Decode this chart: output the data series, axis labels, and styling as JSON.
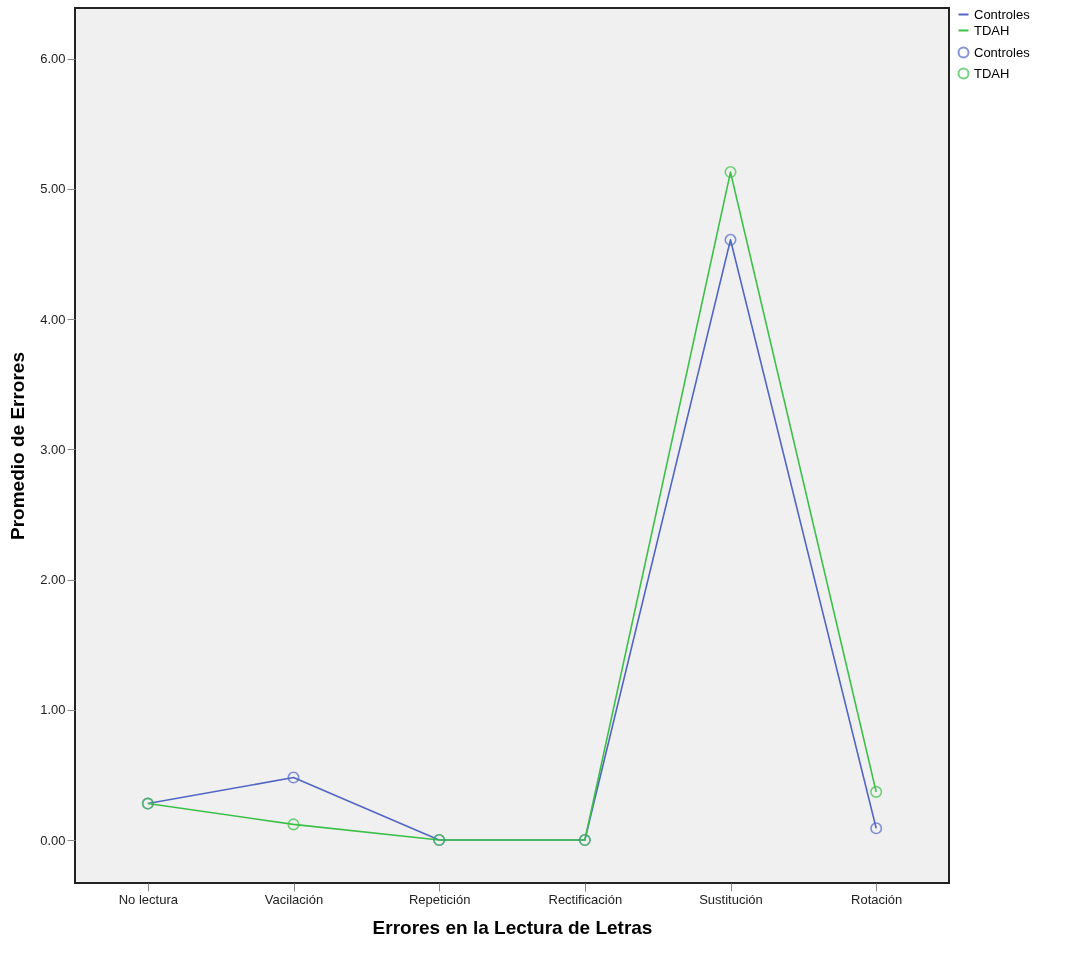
{
  "chart_data": {
    "type": "line",
    "xlabel": "Errores en la Lectura de Letras",
    "ylabel": "Promedio de Errores",
    "categories": [
      "No lectura",
      "Vacilación",
      "Repetición",
      "Rectificación",
      "Sustitución",
      "Rotación"
    ],
    "series": [
      {
        "name": "Controles",
        "color": "#5166c4",
        "values": [
          0.28,
          0.48,
          0.0,
          0.0,
          4.61,
          0.09
        ]
      },
      {
        "name": "TDAH",
        "color": "#3cc048",
        "values": [
          0.28,
          0.12,
          0.0,
          0.0,
          5.13,
          0.37
        ]
      }
    ],
    "ylim": [
      -0.33,
      6.39
    ],
    "yticks": [
      {
        "value": 0,
        "label": "0.00"
      },
      {
        "value": 1,
        "label": "1.00"
      },
      {
        "value": 2,
        "label": "2.00"
      },
      {
        "value": 3,
        "label": "3.00"
      },
      {
        "value": 4,
        "label": "4.00"
      },
      {
        "value": 5,
        "label": "5.00"
      },
      {
        "value": 6,
        "label": "6.00"
      }
    ],
    "marker": "circle",
    "line_style": "solid",
    "legend": "top right",
    "grid": false
  }
}
